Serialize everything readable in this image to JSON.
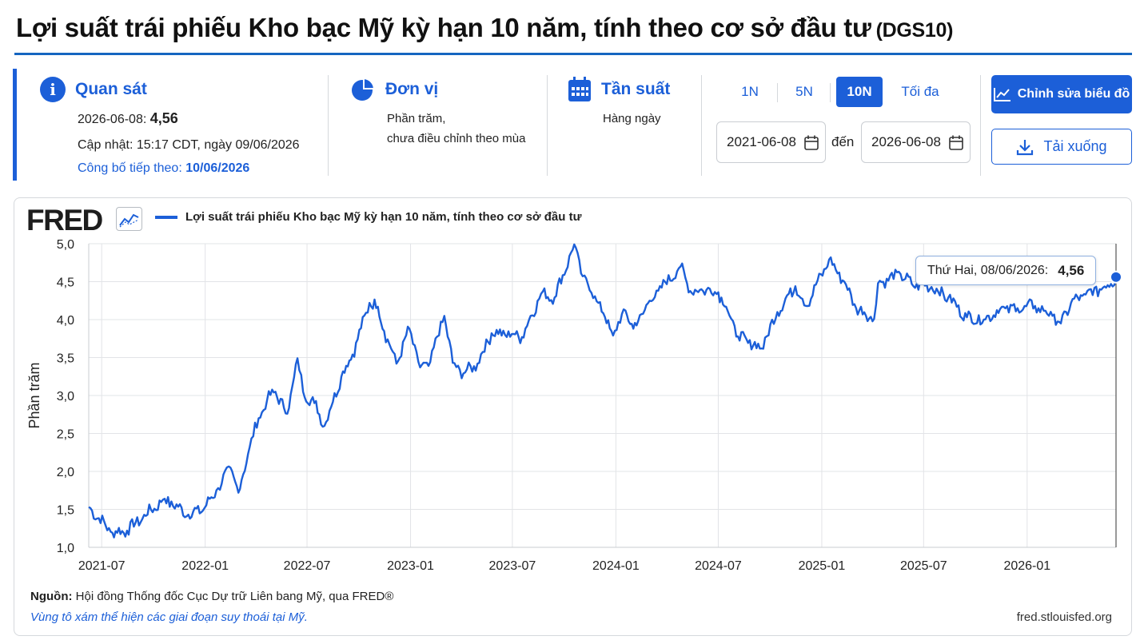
{
  "page": {
    "title": "Lợi suất trái phiếu Kho bạc Mỹ kỳ hạn 10 năm, tính theo cơ sở đầu tư",
    "series_id": "(DGS10)"
  },
  "observation": {
    "heading": "Quan sát",
    "date_label": "2026-06-08:",
    "value": "4,56",
    "updated": "Cập nhật: 15:17 CDT, ngày 09/06/2026",
    "next_release_label": "Công bố tiếp theo:",
    "next_release_date": "10/06/2026"
  },
  "units": {
    "heading": "Đơn vị",
    "line1": "Phần trăm,",
    "line2": "chưa điều chỉnh theo mùa"
  },
  "frequency": {
    "heading": "Tần suất",
    "value": "Hàng ngày"
  },
  "range": {
    "buttons": [
      "1N",
      "5N",
      "10N",
      "Tối đa"
    ],
    "active": "10N",
    "start_date": "2021-06-08",
    "to_label": "đến",
    "end_date": "2026-06-08"
  },
  "actions": {
    "edit_label": "Chỉnh sửa biểu đồ",
    "download_label": "Tải xuống"
  },
  "chart": {
    "logo": "FRED",
    "source_label": "Nguồn:",
    "source_text": "Hội đồng Thống đốc Cục Dự trữ Liên bang Mỹ, qua FRED®",
    "recession_note": "Vùng tô xám thể hiện các giai đoạn suy thoái tại Mỹ.",
    "site": "fred.stlouisfed.org",
    "tooltip_label": "Thứ Hai, 08/06/2026:",
    "tooltip_value": "4,56",
    "line_color": "#1c5fd8"
  },
  "chart_data": {
    "type": "line",
    "title": "",
    "xlabel": "",
    "ylabel": "Phần trăm",
    "ylim": [
      1.0,
      5.0
    ],
    "yticks": [
      "1,0",
      "1,5",
      "2,0",
      "2,5",
      "3,0",
      "3,5",
      "4,0",
      "4,5",
      "5,0"
    ],
    "xticks": [
      "2021-07",
      "2022-01",
      "2022-07",
      "2023-01",
      "2023-07",
      "2024-01",
      "2024-07",
      "2025-01",
      "2025-07",
      "2026-01"
    ],
    "grid": true,
    "legend": "top-left",
    "series": [
      {
        "name": "Lợi suất trái phiếu Kho bạc Mỹ kỳ hạn 10 năm, tính theo cơ sở đầu tư",
        "x": [
          "2021-06-08",
          "2021-07-20",
          "2021-08-15",
          "2021-10-21",
          "2021-12-02",
          "2021-12-31",
          "2022-01-24",
          "2022-02-15",
          "2022-03-01",
          "2022-03-21",
          "2022-04-06",
          "2022-04-21",
          "2022-05-06",
          "2022-05-27",
          "2022-06-14",
          "2022-06-24",
          "2022-07-14",
          "2022-08-01",
          "2022-08-31",
          "2022-09-20",
          "2022-10-20",
          "2022-11-04",
          "2022-11-15",
          "2022-12-07",
          "2022-12-30",
          "2023-01-18",
          "2023-02-02",
          "2023-03-02",
          "2023-03-17",
          "2023-04-05",
          "2023-04-30",
          "2023-05-25",
          "2023-06-30",
          "2023-07-18",
          "2023-08-21",
          "2023-09-14",
          "2023-10-19",
          "2023-11-03",
          "2023-12-01",
          "2023-12-27",
          "2024-01-18",
          "2024-02-01",
          "2024-03-01",
          "2024-04-25",
          "2024-05-15",
          "2024-06-01",
          "2024-07-01",
          "2024-07-15",
          "2024-08-05",
          "2024-09-16",
          "2024-10-14",
          "2024-11-15",
          "2024-12-04",
          "2025-01-14",
          "2025-02-10",
          "2025-03-03",
          "2025-04-04",
          "2025-04-11",
          "2025-05-21",
          "2025-06-10",
          "2025-07-15",
          "2025-08-14",
          "2025-09-16",
          "2025-10-16",
          "2025-11-14",
          "2025-12-15",
          "2026-01-15",
          "2026-02-15",
          "2026-03-02",
          "2026-03-20",
          "2026-04-15",
          "2026-05-10",
          "2026-05-30",
          "2026-06-08"
        ],
        "values": [
          1.53,
          1.19,
          1.22,
          1.64,
          1.43,
          1.52,
          1.78,
          2.05,
          1.72,
          2.32,
          2.7,
          2.94,
          3.05,
          2.76,
          3.49,
          3.05,
          2.9,
          2.6,
          3.25,
          3.54,
          4.22,
          4.17,
          3.85,
          3.42,
          3.88,
          3.37,
          3.39,
          4.05,
          3.43,
          3.29,
          3.42,
          3.82,
          3.81,
          3.77,
          4.34,
          4.29,
          4.99,
          4.57,
          4.22,
          3.79,
          4.12,
          3.88,
          4.25,
          4.7,
          4.35,
          4.4,
          4.36,
          4.17,
          3.78,
          3.62,
          4.1,
          4.44,
          4.18,
          4.79,
          4.5,
          4.15,
          4.01,
          4.48,
          4.6,
          4.47,
          4.43,
          4.29,
          4.03,
          4.0,
          4.14,
          4.15,
          4.18,
          4.05,
          3.95,
          4.22,
          4.33,
          4.4,
          4.47,
          4.56
        ]
      }
    ]
  }
}
